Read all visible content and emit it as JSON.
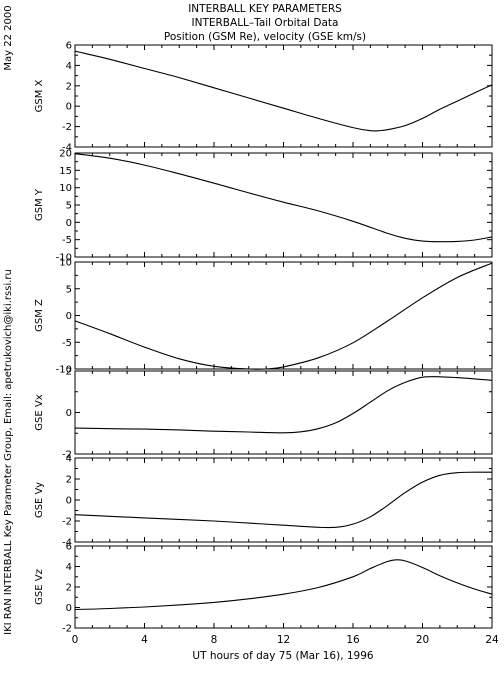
{
  "header": {
    "title_line1": "INTERBALL KEY PARAMETERS",
    "title_line2": "INTERBALL–Tail Orbital Data",
    "title_line3": "Position (GSM Re), velocity (GSE km/s)"
  },
  "side_text": {
    "date": "May 22 2000",
    "credit": "IKI RAN INTERBALL Key Parameter Group, Email: apetrukovich@iki.rssi.ru"
  },
  "xaxis": {
    "label": "UT hours of day  75 (Mar 16), 1996",
    "ticks": [
      "0",
      "4",
      "8",
      "12",
      "16",
      "20",
      "24"
    ],
    "range": [
      0,
      24
    ]
  },
  "chart_data": [
    {
      "type": "line",
      "ylabel": "GSM X",
      "ylim": [
        -4,
        6
      ],
      "yticks": [
        "6",
        "4",
        "2",
        "0",
        "-2",
        "-4"
      ],
      "ytick_values": [
        6,
        4,
        2,
        0,
        -2,
        -4
      ],
      "x": [
        0,
        2,
        4,
        6,
        8,
        10,
        12,
        14,
        16,
        17,
        17.5,
        18,
        19,
        20,
        21,
        22,
        23,
        24
      ],
      "values": [
        5.4,
        4.6,
        3.7,
        2.8,
        1.8,
        0.8,
        -0.2,
        -1.2,
        -2.1,
        -2.4,
        -2.4,
        -2.3,
        -1.9,
        -1.2,
        -0.3,
        0.5,
        1.3,
        2.1
      ]
    },
    {
      "type": "line",
      "ylabel": "GSM Y",
      "ylim": [
        -10,
        20
      ],
      "yticks": [
        "20",
        "15",
        "10",
        "5",
        "0",
        "-5",
        "-10"
      ],
      "ytick_values": [
        20,
        15,
        10,
        5,
        0,
        -5,
        -10
      ],
      "x": [
        0,
        2,
        4,
        6,
        8,
        10,
        12,
        14,
        16,
        18,
        19,
        20,
        21,
        22,
        23,
        24
      ],
      "values": [
        19.8,
        18.5,
        16.5,
        14.0,
        11.3,
        8.5,
        5.8,
        3.3,
        0.3,
        -3.2,
        -4.6,
        -5.4,
        -5.6,
        -5.5,
        -5.1,
        -4.2
      ]
    },
    {
      "type": "line",
      "ylabel": "GSM Z",
      "ylim": [
        -10,
        10
      ],
      "yticks": [
        "10",
        "5",
        "0",
        "-5",
        "-10"
      ],
      "ytick_values": [
        10,
        5,
        0,
        -5,
        -10
      ],
      "x": [
        0,
        2,
        4,
        6,
        8,
        10,
        11,
        12,
        14,
        16,
        18,
        20,
        22,
        24
      ],
      "values": [
        -1.0,
        -3.4,
        -5.9,
        -8.1,
        -9.5,
        -10.0,
        -10.0,
        -9.6,
        -7.9,
        -5.1,
        -1.0,
        3.3,
        7.1,
        9.8
      ]
    },
    {
      "type": "line",
      "ylabel": "GSE Vx",
      "ylim": [
        -2,
        2
      ],
      "yticks": [
        "2",
        "0",
        "-2"
      ],
      "ytick_values": [
        2,
        0,
        -2
      ],
      "x": [
        0,
        2,
        4,
        6,
        8,
        10,
        12,
        13,
        14,
        15,
        16,
        17,
        18,
        19,
        20,
        21,
        22,
        23,
        24
      ],
      "values": [
        -0.75,
        -0.78,
        -0.8,
        -0.84,
        -0.9,
        -0.94,
        -0.98,
        -0.93,
        -0.78,
        -0.5,
        -0.05,
        0.5,
        1.05,
        1.45,
        1.7,
        1.72,
        1.68,
        1.62,
        1.55
      ]
    },
    {
      "type": "line",
      "ylabel": "GSE Vy",
      "ylim": [
        -4,
        4
      ],
      "yticks": [
        "4",
        "2",
        "0",
        "-2",
        "-4"
      ],
      "ytick_values": [
        4,
        2,
        0,
        -2,
        -4
      ],
      "x": [
        0,
        2,
        4,
        6,
        8,
        10,
        12,
        13,
        14,
        15,
        16,
        17,
        18,
        19,
        20,
        21,
        22,
        23,
        24
      ],
      "values": [
        -1.4,
        -1.55,
        -1.7,
        -1.85,
        -2.0,
        -2.2,
        -2.4,
        -2.5,
        -2.6,
        -2.6,
        -2.3,
        -1.6,
        -0.5,
        0.7,
        1.7,
        2.35,
        2.6,
        2.65,
        2.65
      ]
    },
    {
      "type": "line",
      "ylabel": "GSE Vz",
      "ylim": [
        -2,
        6
      ],
      "yticks": [
        "6",
        "4",
        "2",
        "0",
        "-2"
      ],
      "ytick_values": [
        6,
        4,
        2,
        0,
        -2
      ],
      "x": [
        0,
        2,
        4,
        6,
        8,
        10,
        12,
        14,
        16,
        17,
        18,
        18.5,
        19,
        20,
        21,
        22,
        23,
        24
      ],
      "values": [
        -0.2,
        -0.1,
        0.05,
        0.25,
        0.5,
        0.85,
        1.3,
        1.95,
        3.0,
        3.8,
        4.5,
        4.65,
        4.55,
        3.9,
        3.1,
        2.4,
        1.8,
        1.3
      ]
    }
  ]
}
